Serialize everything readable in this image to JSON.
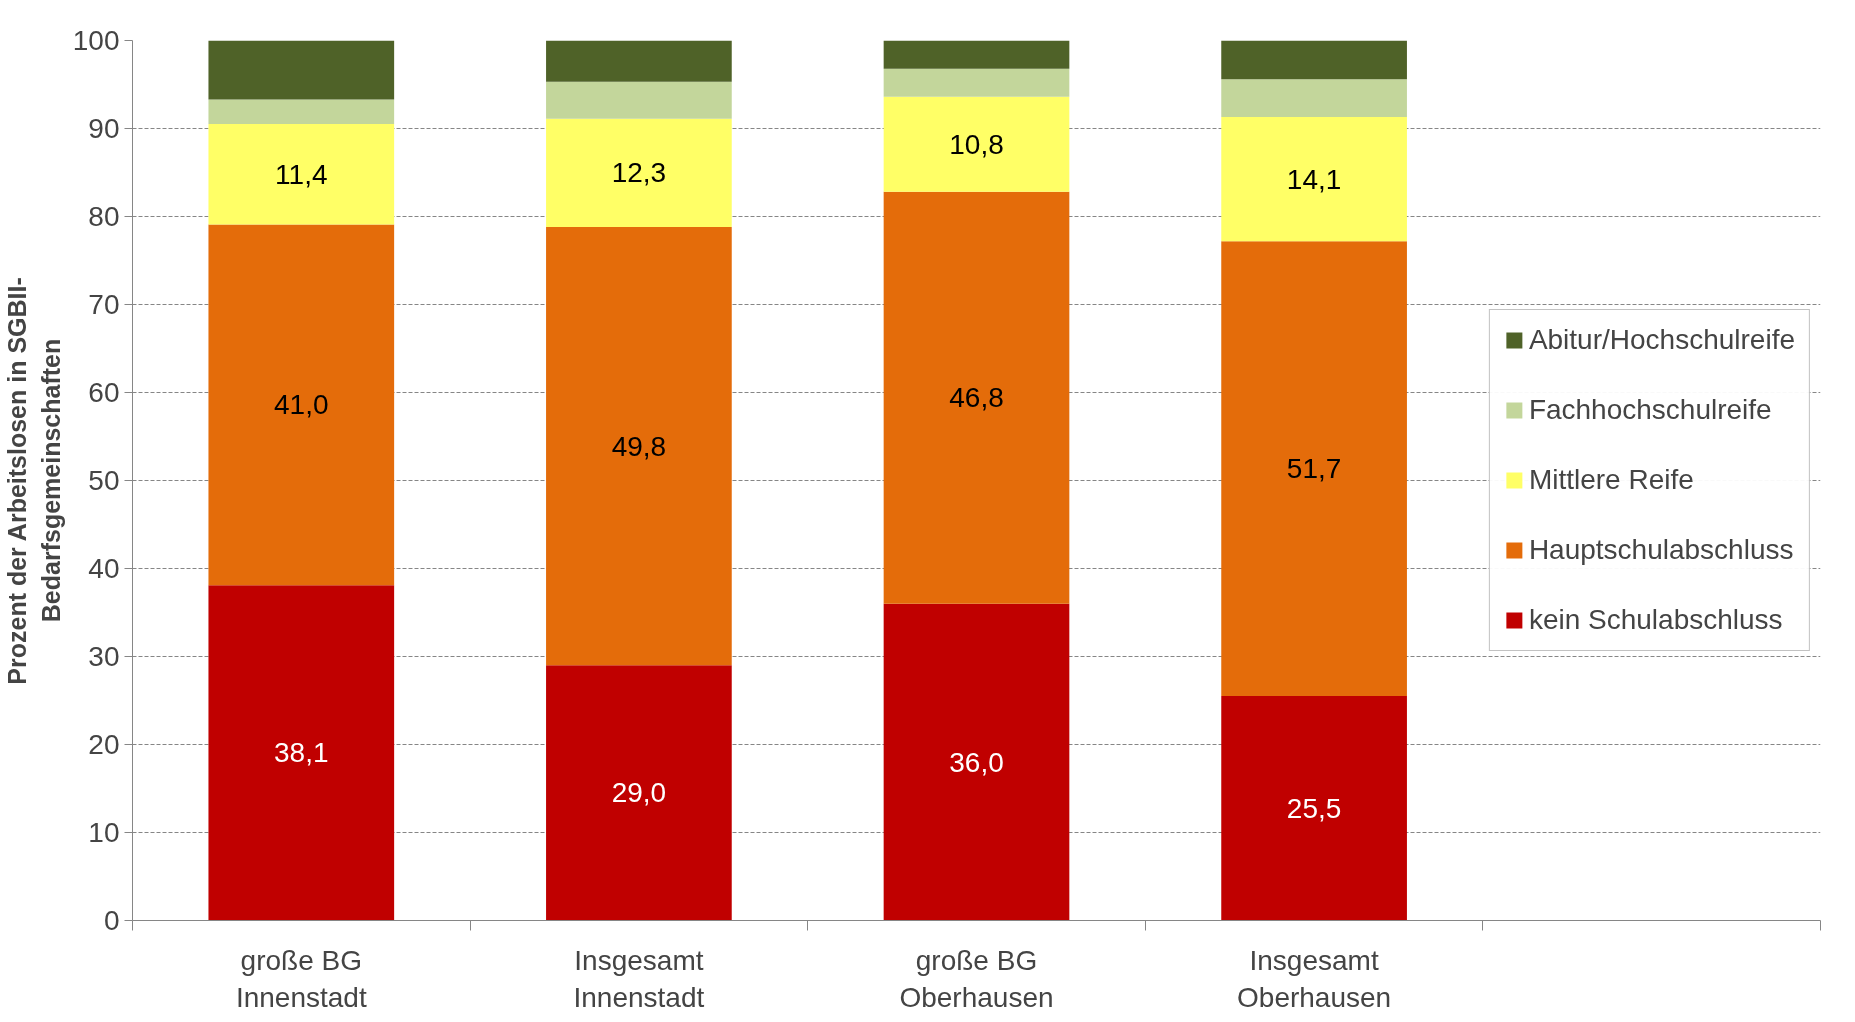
{
  "chart_data": {
    "type": "bar",
    "stacked": true,
    "ylabel": "Prozent der Arbeitslosen in SGBII-\nBedarfsgemeinschaften",
    "categories": [
      "große BG\nInnenstadt",
      "Insgesamt\nInnenstadt",
      "große BG\nOberhausen",
      "Insgesamt\nOberhausen",
      null
    ],
    "series": [
      {
        "name": "kein Schulabschluss",
        "color": "#c00000",
        "values": [
          38.1,
          29.0,
          36.0,
          25.5,
          null
        ],
        "value_labels": [
          "38,1",
          "29,0",
          "36,0",
          "25,5",
          null
        ]
      },
      {
        "name": "Hauptschulabschluss",
        "color": "#e46c0a",
        "values": [
          41.0,
          49.8,
          46.8,
          51.7,
          null
        ],
        "value_labels": [
          "41,0",
          "49,8",
          "46,8",
          "51,7",
          null
        ]
      },
      {
        "name": "Mittlere Reife",
        "color": "#ffff66",
        "values": [
          11.4,
          12.3,
          10.8,
          14.1,
          null
        ],
        "value_labels": [
          "11,4",
          "12,3",
          "10,8",
          "14,1",
          null
        ]
      },
      {
        "name": "Fachhochschulreife",
        "color": "#c3d69b",
        "values": [
          2.8,
          4.2,
          3.2,
          4.3,
          null
        ]
      },
      {
        "name": "Abitur/Hochschulreife",
        "color": "#4f6228",
        "values": [
          6.7,
          4.7,
          3.2,
          4.4,
          null
        ]
      }
    ],
    "ylim": [
      0,
      100
    ],
    "yticks": [
      0,
      10,
      20,
      30,
      40,
      50,
      60,
      70,
      80,
      90,
      100
    ],
    "grid": "y",
    "legend": "right"
  }
}
